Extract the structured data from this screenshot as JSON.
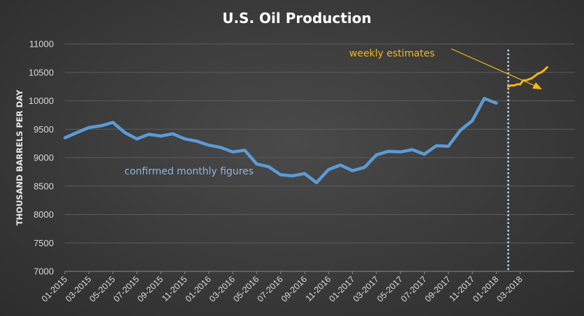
{
  "chart_data": {
    "type": "line",
    "title": "U.S. Oil Production",
    "xlabel": "",
    "ylabel": "THOUSAND BARRELS PER DAY",
    "ylim": [
      7000,
      11000
    ],
    "yticks": [
      7000,
      7500,
      8000,
      8500,
      9000,
      9500,
      10000,
      10500,
      11000
    ],
    "grid": true,
    "x_tick_labels": [
      "01-2015",
      "03-2015",
      "05-2015",
      "07-2015",
      "09-2015",
      "11-2015",
      "01-2016",
      "03-2016",
      "05-2016",
      "07-2016",
      "09-2016",
      "11-2016",
      "01-2017",
      "03-2017",
      "05-2017",
      "07-2017",
      "09-2017",
      "11-2017",
      "01-2018",
      "03-2018"
    ],
    "series": [
      {
        "name": "confirmed monthly figures",
        "color": "#5b9bd5",
        "x": [
          0,
          1,
          2,
          3,
          4,
          5,
          6,
          7,
          8,
          9,
          10,
          11,
          12,
          13,
          14,
          15,
          16,
          17,
          18,
          19,
          20,
          21,
          22,
          23,
          24,
          25,
          26,
          27,
          28,
          29,
          30,
          31,
          32,
          33,
          34,
          35,
          36
        ],
        "values": [
          9350,
          9440,
          9530,
          9560,
          9620,
          9440,
          9330,
          9410,
          9380,
          9420,
          9330,
          9290,
          9220,
          9180,
          9100,
          9130,
          8890,
          8840,
          8700,
          8680,
          8720,
          8560,
          8790,
          8870,
          8770,
          8830,
          9050,
          9110,
          9100,
          9140,
          9060,
          9210,
          9200,
          9480,
          9650,
          10040,
          9960
        ]
      },
      {
        "name": "weekly estimates",
        "color": "#f2b812",
        "x": [
          37.0,
          37.25,
          37.5,
          37.75,
          38.0,
          38.25,
          38.5,
          38.75,
          39.0,
          39.25,
          39.5,
          39.75,
          40.0,
          40.25
        ],
        "values": [
          10250,
          10270,
          10270,
          10290,
          10290,
          10360,
          10360,
          10380,
          10400,
          10440,
          10480,
          10500,
          10540,
          10590
        ]
      }
    ],
    "annotations": [
      {
        "text": "confirmed monthly figures",
        "color": "#8db8e3"
      },
      {
        "text": "weekly estimates",
        "color": "#f2b812"
      }
    ],
    "divider": {
      "x": 37,
      "color": "#c8d8ea",
      "style": "dotted"
    }
  }
}
